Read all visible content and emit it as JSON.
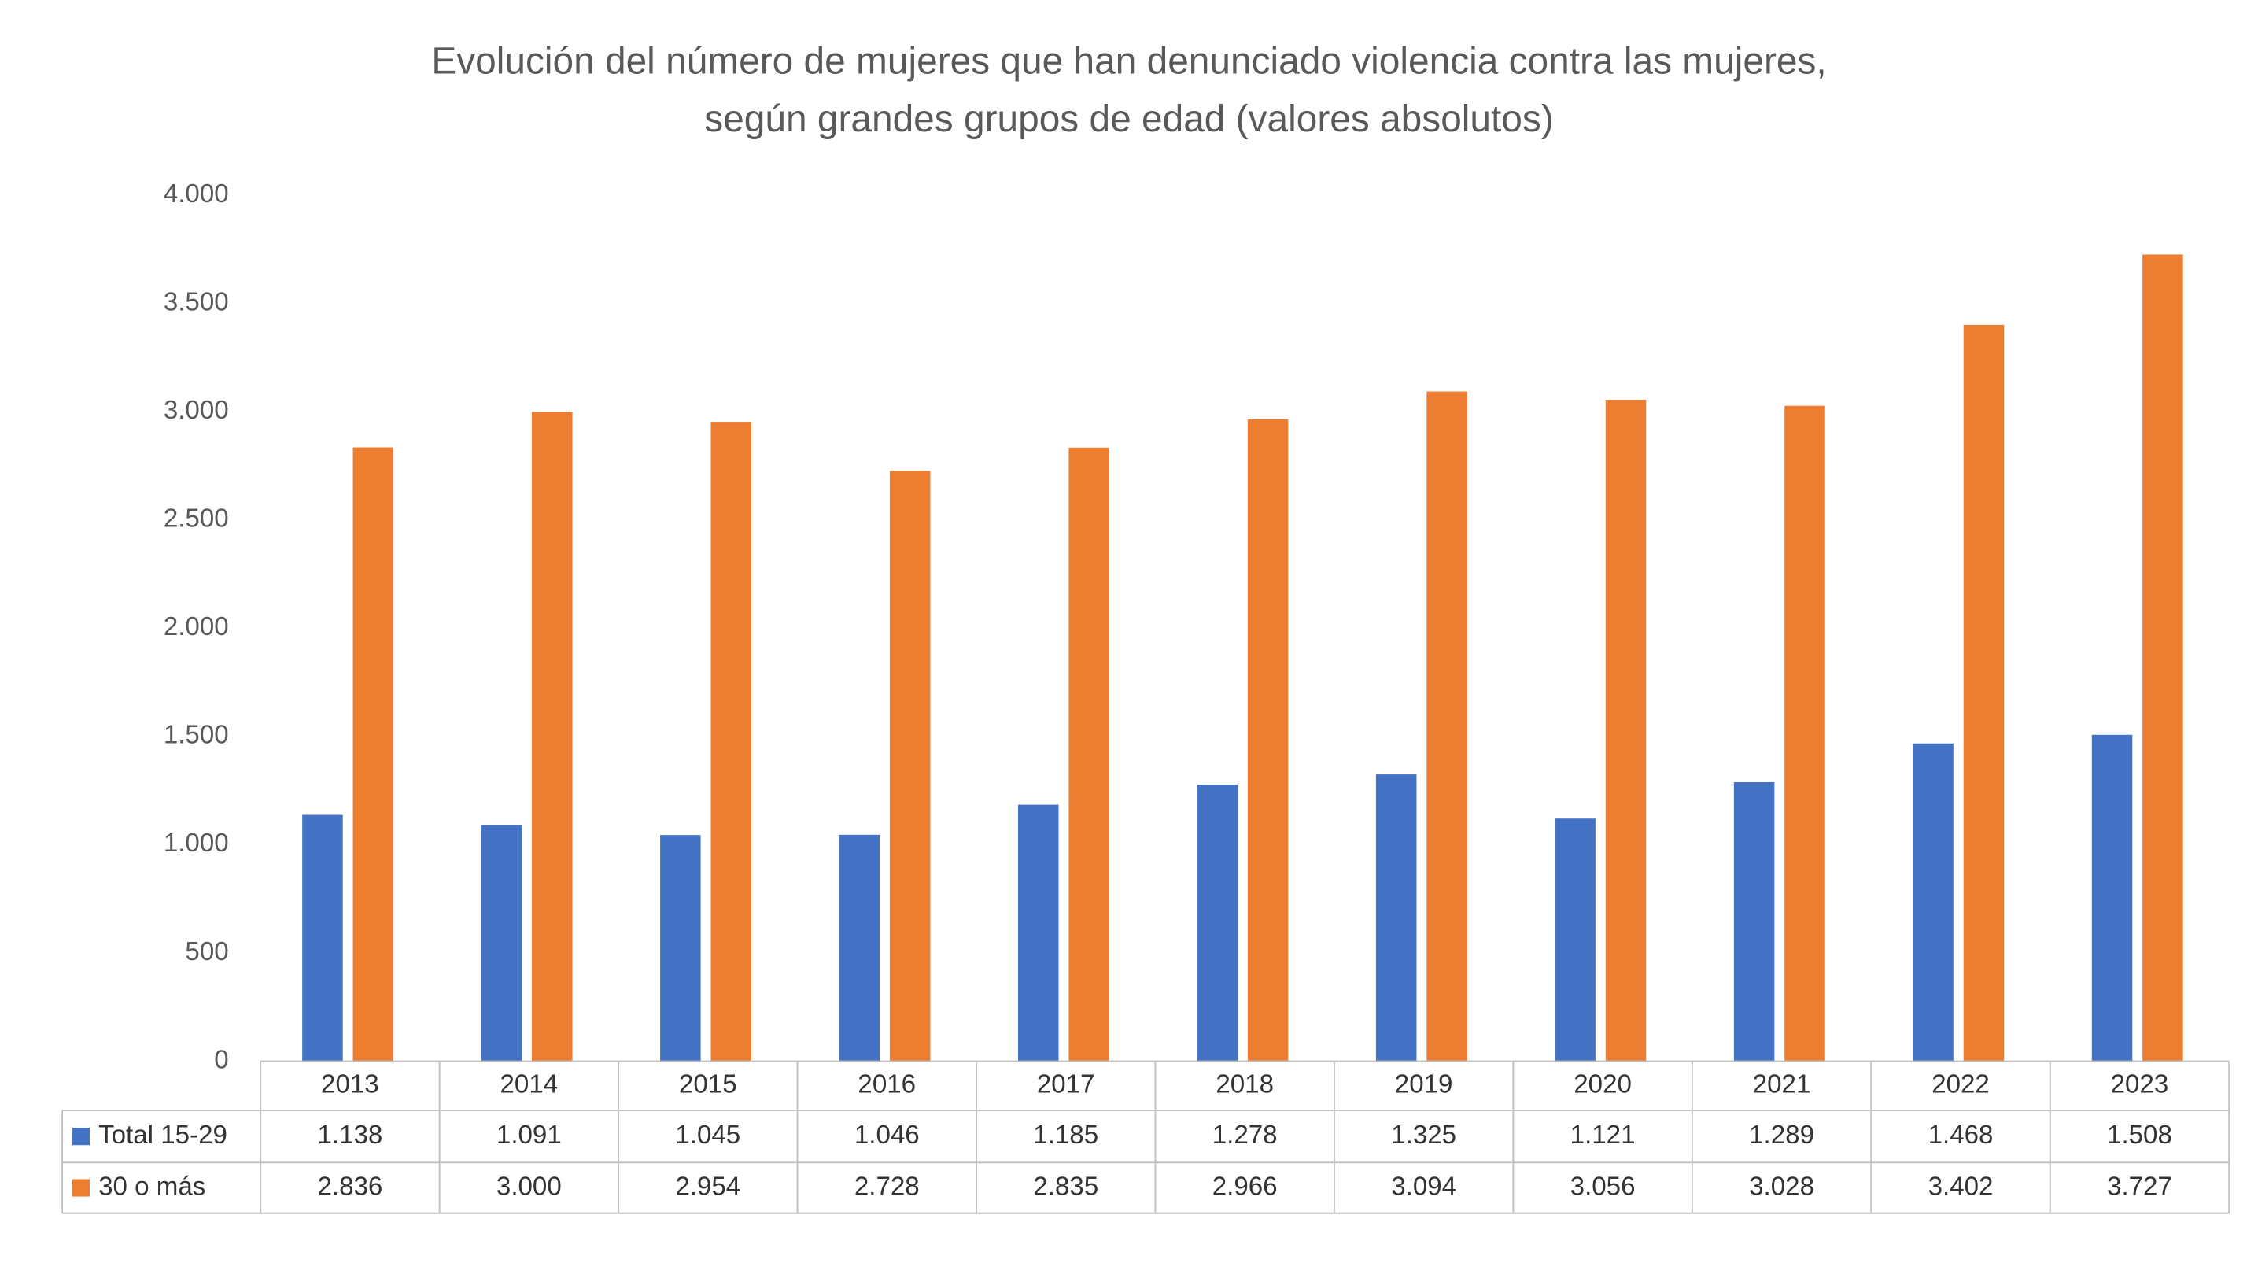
{
  "chart_data": {
    "type": "bar",
    "title": [
      "Evolución del número de mujeres que han denunciado violencia contra las mujeres,",
      "según grandes grupos de edad (valores absolutos)"
    ],
    "categories": [
      "2013",
      "2014",
      "2015",
      "2016",
      "2017",
      "2018",
      "2019",
      "2020",
      "2021",
      "2022",
      "2023"
    ],
    "series": [
      {
        "name": "Total 15-29",
        "color": "#4472c4",
        "values": [
          1138,
          1091,
          1045,
          1046,
          1185,
          1278,
          1325,
          1121,
          1289,
          1468,
          1508
        ],
        "value_labels": [
          "1.138",
          "1.091",
          "1.045",
          "1.046",
          "1.185",
          "1.278",
          "1.325",
          "1.121",
          "1.289",
          "1.468",
          "1.508"
        ]
      },
      {
        "name": "30 o más",
        "color": "#ed7d31",
        "values": [
          2836,
          3000,
          2954,
          2728,
          2835,
          2966,
          3094,
          3056,
          3028,
          3402,
          3727
        ],
        "value_labels": [
          "2.836",
          "3.000",
          "2.954",
          "2.728",
          "2.835",
          "2.966",
          "3.094",
          "3.056",
          "3.028",
          "3.402",
          "3.727"
        ]
      }
    ],
    "ylim": [
      0,
      4000
    ],
    "yticks": [
      0,
      500,
      {
        "value": 1000,
        "label": "1.000"
      },
      {
        "value": 1500,
        "label": "1.500"
      },
      {
        "value": 2000,
        "label": "2.000"
      },
      {
        "value": 2500,
        "label": "2.500"
      },
      {
        "value": 3000,
        "label": "3.000"
      },
      {
        "value": 3500,
        "label": "3.500"
      },
      {
        "value": 4000,
        "label": "4.000"
      }
    ],
    "grid": false
  }
}
